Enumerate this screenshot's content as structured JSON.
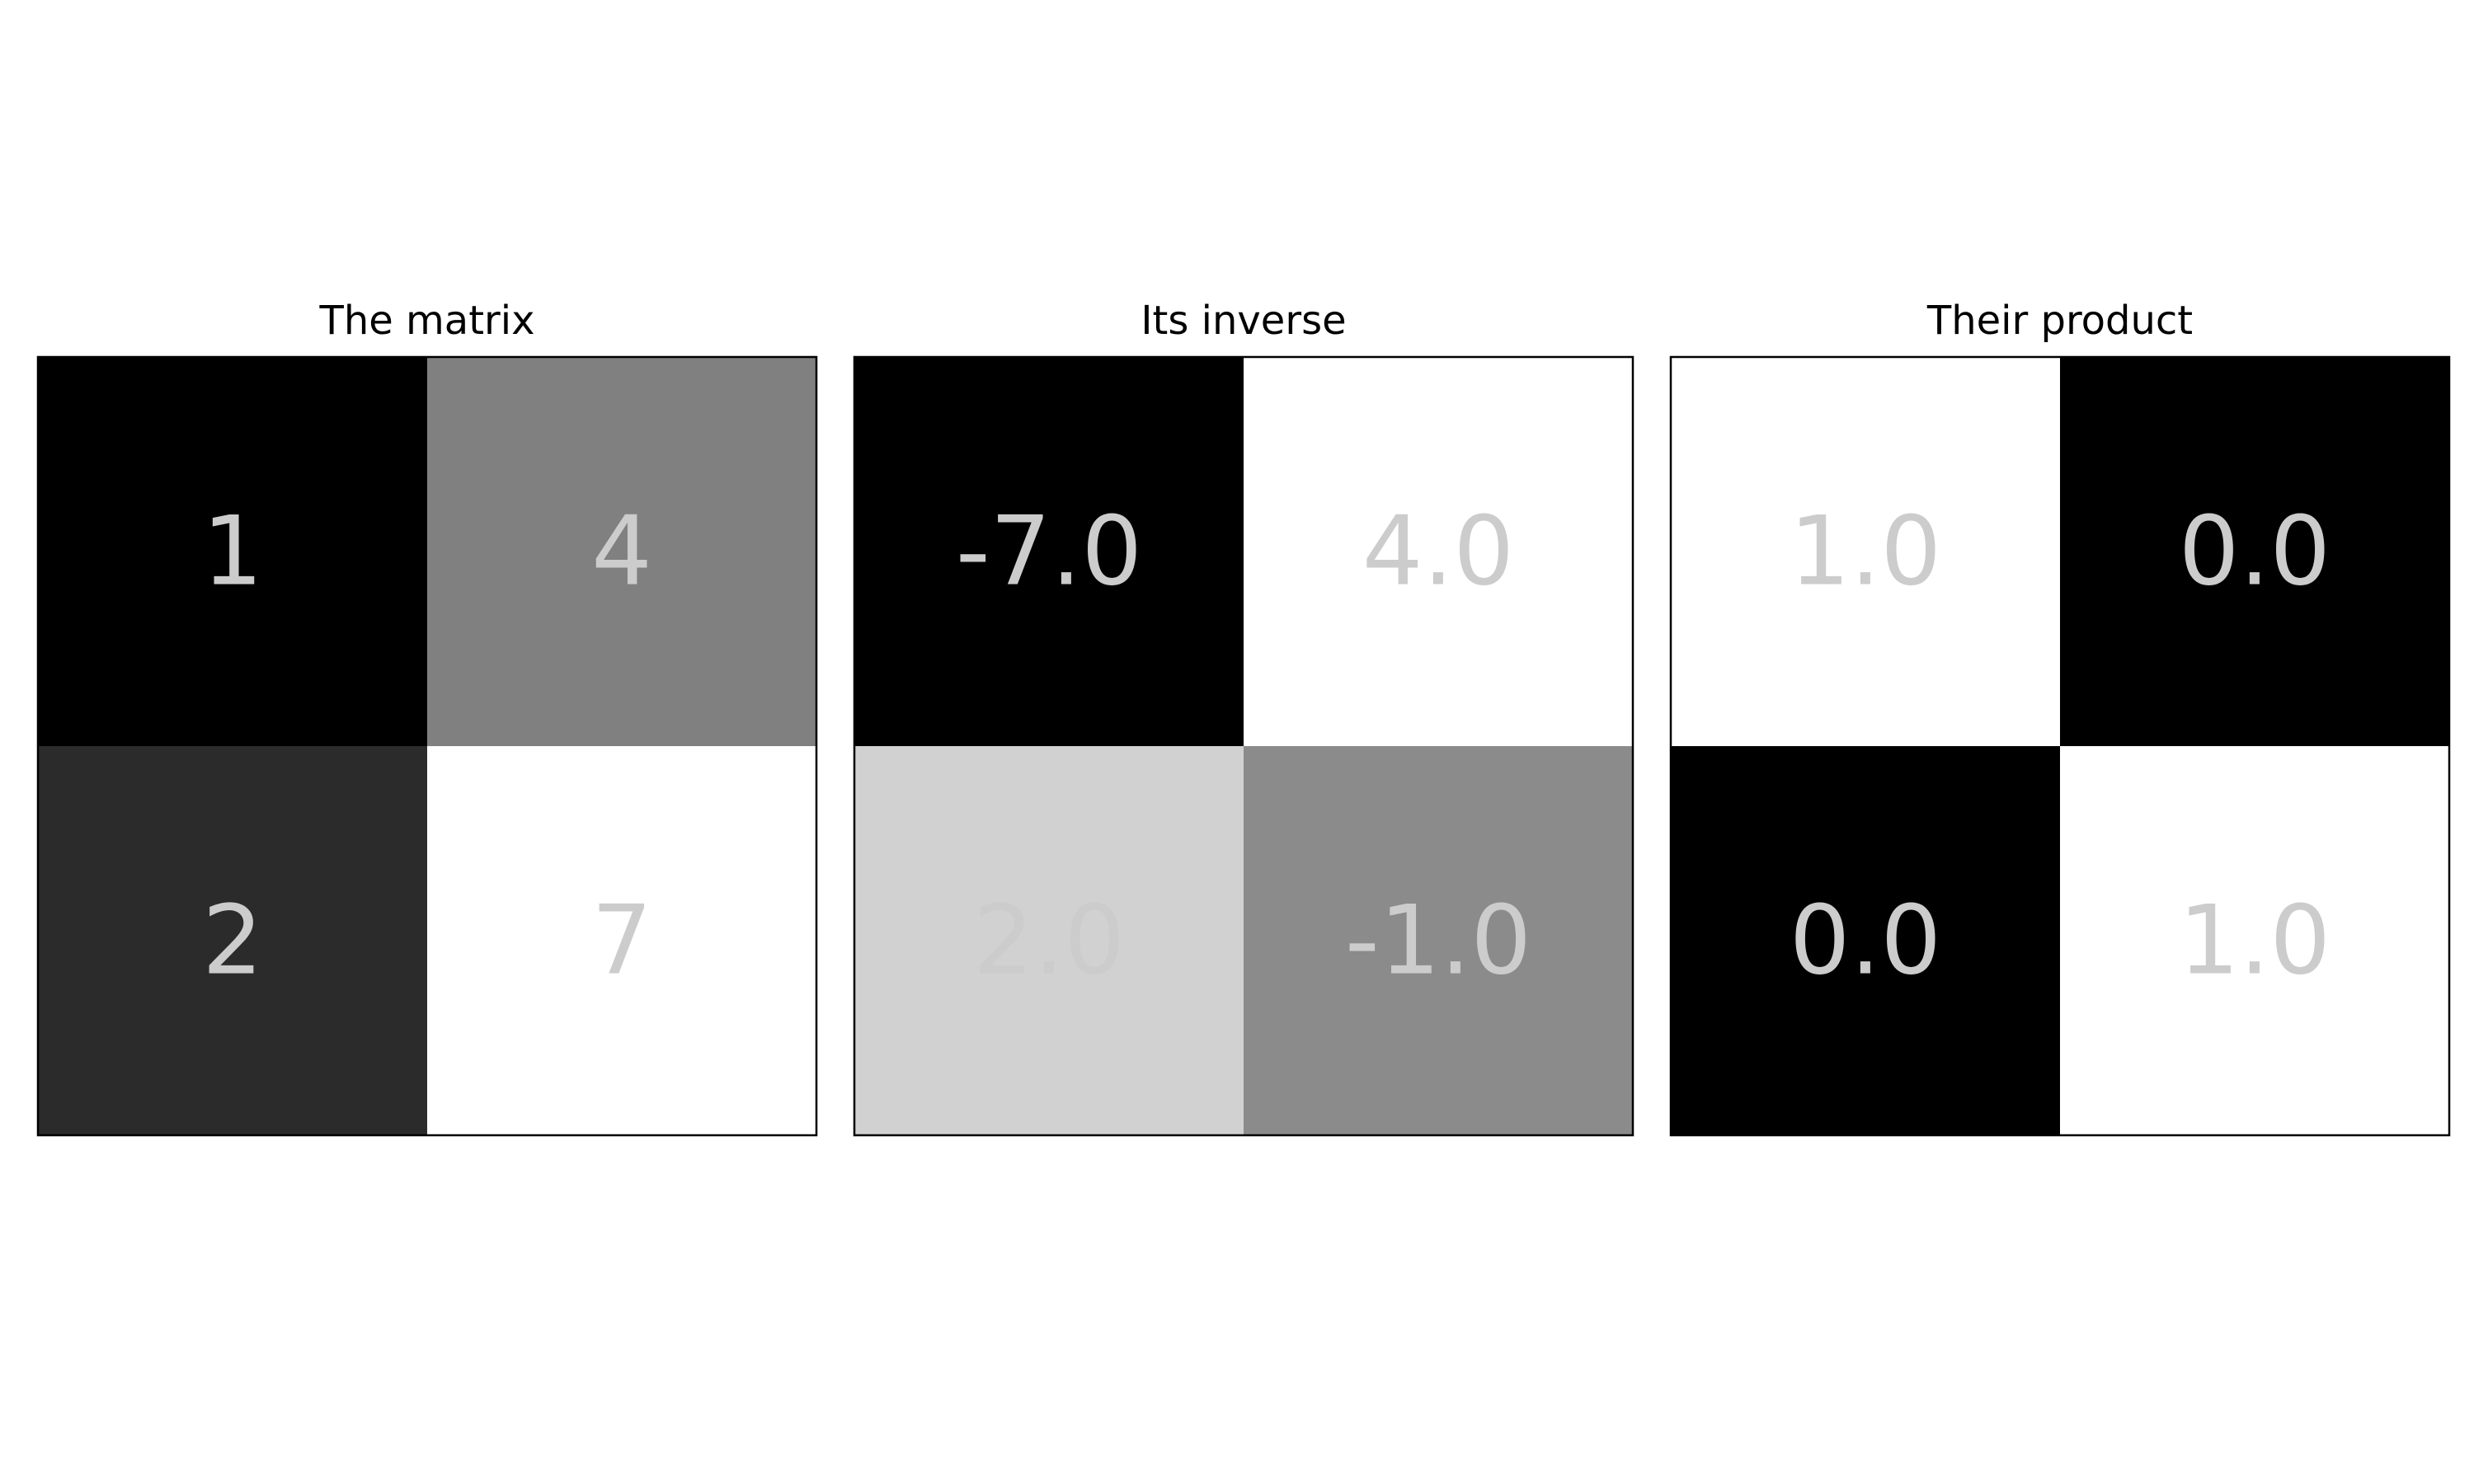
{
  "chart_data": [
    {
      "type": "heatmap",
      "title": "The matrix",
      "colormap": "gray",
      "rows": 2,
      "cols": 2,
      "values": [
        [
          1,
          4
        ],
        [
          2,
          7
        ]
      ],
      "labels": [
        [
          "1",
          "4"
        ],
        [
          "2",
          "7"
        ]
      ],
      "vmin": 1,
      "vmax": 7,
      "label_color": "#cccccc"
    },
    {
      "type": "heatmap",
      "title": "Its inverse",
      "colormap": "gray",
      "rows": 2,
      "cols": 2,
      "values": [
        [
          -7.0,
          4.0
        ],
        [
          2.0,
          -1.0
        ]
      ],
      "labels": [
        [
          "-7.0",
          "4.0"
        ],
        [
          "2.0",
          "-1.0"
        ]
      ],
      "vmin": -7.0,
      "vmax": 4.0,
      "label_color": "#cccccc"
    },
    {
      "type": "heatmap",
      "title": "Their product",
      "colormap": "gray",
      "rows": 2,
      "cols": 2,
      "values": [
        [
          1.0,
          0.0
        ],
        [
          0.0,
          1.0
        ]
      ],
      "labels": [
        [
          "1.0",
          "0.0"
        ],
        [
          "0.0",
          "1.0"
        ]
      ],
      "vmin": 0.0,
      "vmax": 1.0,
      "label_color": "#cccccc"
    }
  ]
}
